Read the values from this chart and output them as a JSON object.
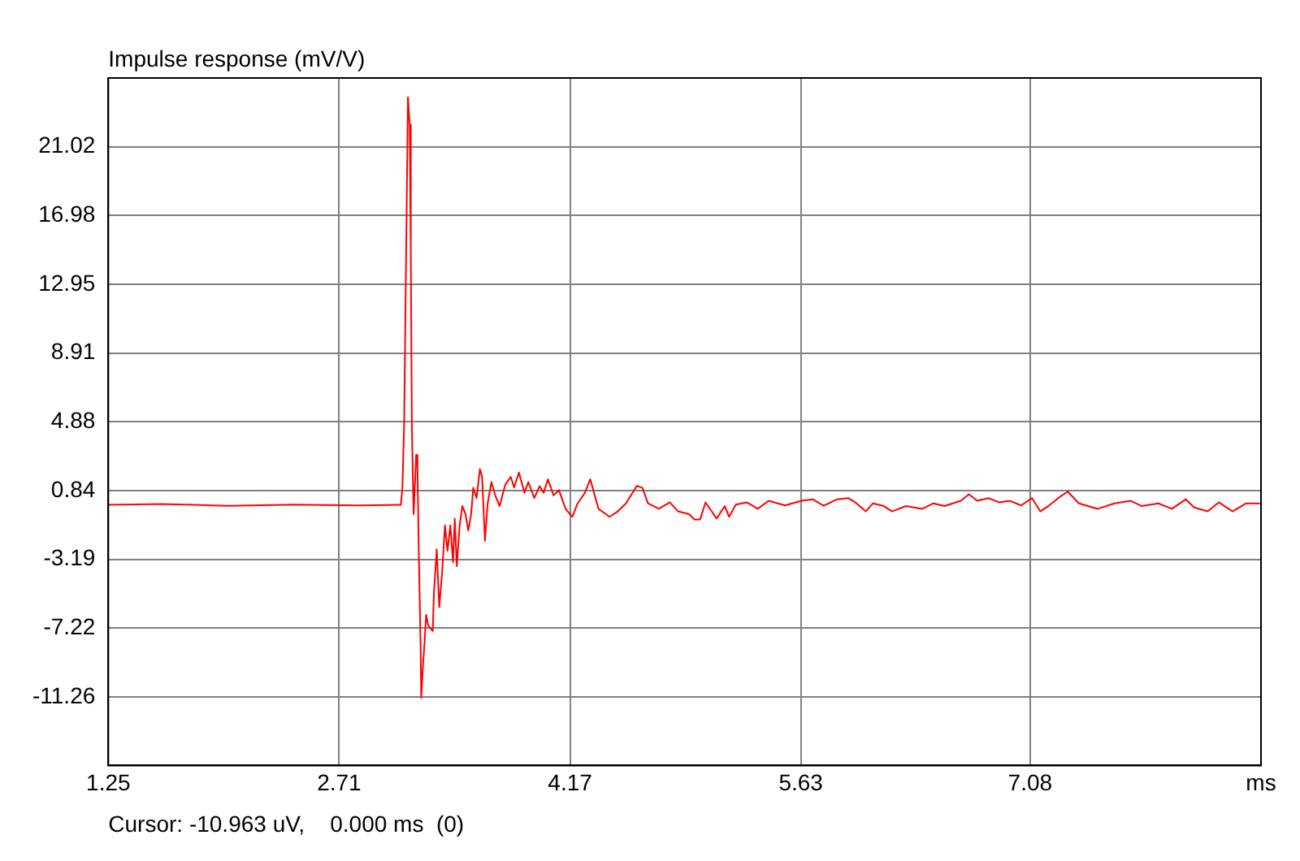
{
  "chart_data": {
    "type": "line",
    "title": "Impulse response (mV/V)",
    "annotations": [
      "Cursor: -10.963 uV,    0.000 ms  (0)"
    ],
    "x": [
      1.25,
      1.59,
      2.007,
      2.424,
      2.84,
      3.09,
      3.1,
      3.11,
      3.121,
      3.145,
      3.156,
      3.163,
      3.17,
      3.181,
      3.197,
      3.205,
      3.212,
      3.225,
      3.229,
      3.239,
      3.25,
      3.26,
      3.274,
      3.302,
      3.309,
      3.327,
      3.343,
      3.361,
      3.379,
      3.395,
      3.413,
      3.43,
      3.441,
      3.454,
      3.472,
      3.489,
      3.509,
      3.527,
      3.545,
      3.558,
      3.579,
      3.6,
      3.614,
      3.632,
      3.649,
      3.673,
      3.697,
      3.725,
      3.76,
      3.795,
      3.816,
      3.847,
      3.882,
      3.906,
      3.944,
      3.978,
      4.003,
      4.03,
      4.066,
      4.1,
      4.142,
      4.184,
      4.218,
      4.264,
      4.298,
      4.35,
      4.42,
      4.472,
      4.524,
      4.593,
      4.628,
      4.663,
      4.732,
      4.801,
      4.853,
      4.923,
      4.957,
      4.993,
      5.027,
      5.097,
      5.149,
      5.176,
      5.218,
      5.288,
      5.357,
      5.426,
      5.53,
      5.634,
      5.704,
      5.774,
      5.86,
      5.93,
      5.982,
      6.04,
      6.086,
      6.155,
      6.207,
      6.295,
      6.399,
      6.468,
      6.538,
      6.642,
      6.693,
      6.745,
      6.815,
      6.884,
      6.953,
      7.023,
      7.092,
      7.144,
      7.195,
      7.266,
      7.318,
      7.388,
      7.508,
      7.613,
      7.717,
      7.786,
      7.891,
      7.977,
      8.065,
      8.117,
      8.203,
      8.273,
      8.36,
      8.446,
      8.534
    ],
    "series": [
      {
        "color": "#ff0000",
        "values": [
          0.0,
          0.05,
          -0.05,
          0.02,
          -0.03,
          0.0,
          0.0,
          1.0,
          4.8,
          23.92,
          22.3,
          14.8,
          4.46,
          -0.54,
          2.93,
          2.3,
          -1.95,
          -8.3,
          -11.33,
          -9.6,
          -8.05,
          -6.45,
          -7.1,
          -7.4,
          -5.2,
          -2.6,
          -6.0,
          -4.0,
          -1.2,
          -2.7,
          -1.2,
          -3.35,
          -0.8,
          -3.6,
          -1.2,
          -0.07,
          -0.54,
          -1.5,
          -0.5,
          1.0,
          0.4,
          2.1,
          1.65,
          -2.1,
          0.09,
          1.34,
          0.56,
          -0.07,
          1.18,
          1.65,
          1.03,
          1.9,
          0.71,
          1.34,
          0.4,
          1.1,
          0.71,
          1.5,
          0.56,
          0.87,
          -0.23,
          -0.7,
          0.09,
          0.71,
          1.5,
          -0.23,
          -0.7,
          -0.38,
          0.09,
          1.12,
          1.0,
          0.09,
          -0.23,
          0.15,
          -0.38,
          -0.54,
          -0.85,
          -0.85,
          0.15,
          -0.8,
          -0.07,
          -0.7,
          0.02,
          0.15,
          -0.23,
          0.24,
          -0.03,
          0.24,
          0.33,
          -0.05,
          0.33,
          0.4,
          0.09,
          -0.38,
          0.09,
          -0.07,
          -0.38,
          -0.07,
          -0.23,
          0.09,
          -0.07,
          0.24,
          0.62,
          0.24,
          0.4,
          0.15,
          0.24,
          -0.03,
          0.4,
          -0.38,
          -0.07,
          0.46,
          0.78,
          0.09,
          -0.23,
          0.09,
          0.24,
          -0.07,
          0.09,
          -0.23,
          0.33,
          -0.15,
          -0.38,
          0.15,
          -0.38,
          0.09,
          0.09
        ]
      }
    ],
    "xlim": [
      1.25,
      8.54
    ],
    "xticks": [
      1.25,
      2.71,
      4.17,
      5.63,
      7.08,
      {
        "value": 8.54,
        "label": "ms"
      }
    ],
    "ylim": [
      -15.29,
      25.05
    ],
    "yticks": [
      -11.26,
      -7.22,
      -3.19,
      0.84,
      4.88,
      8.91,
      12.95,
      16.98,
      21.02
    ],
    "grid": true
  }
}
